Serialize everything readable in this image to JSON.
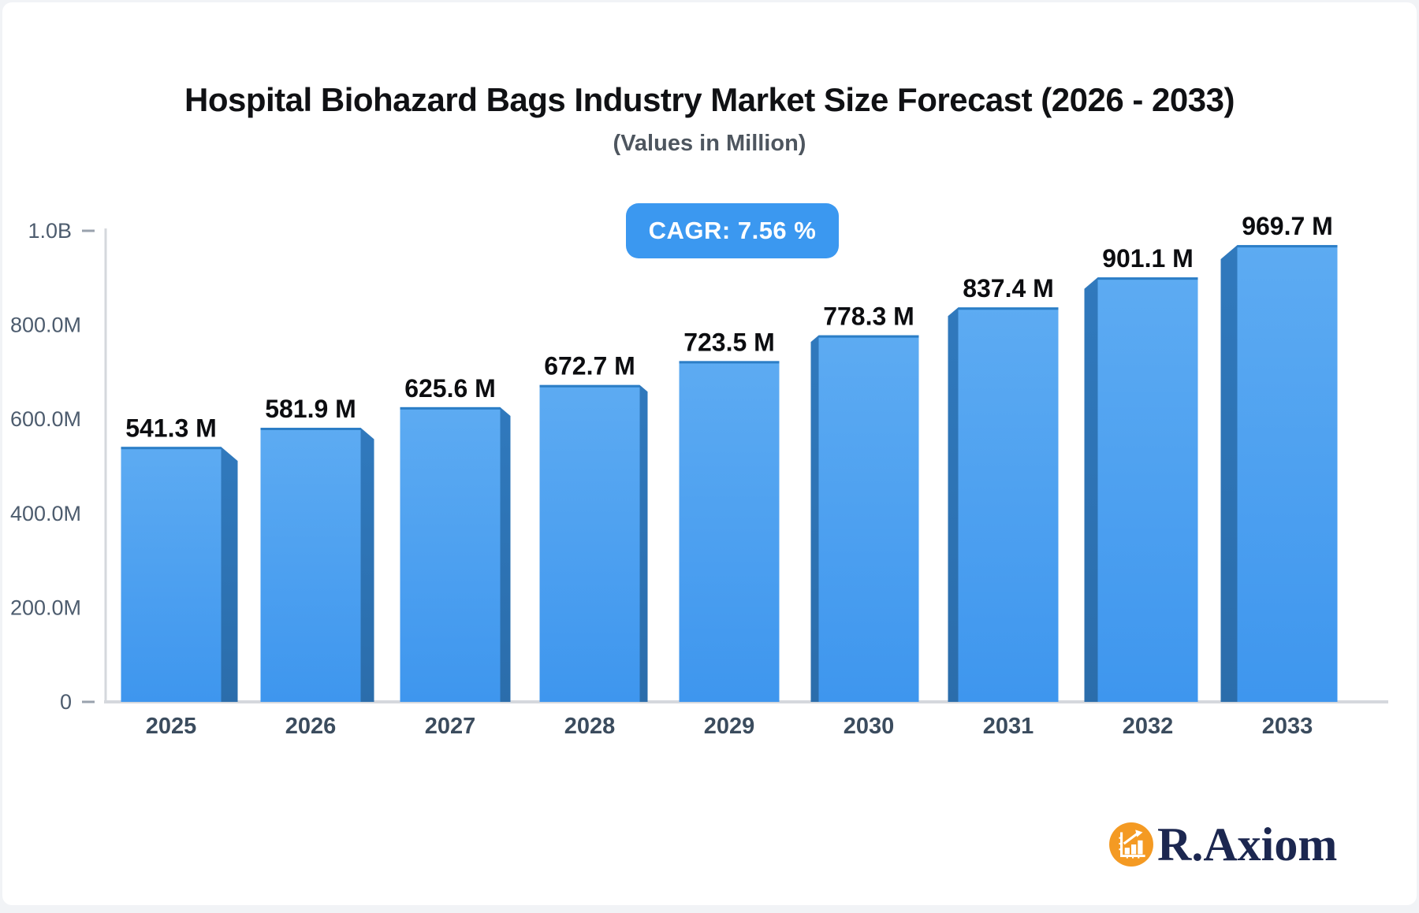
{
  "header": {
    "title": "Hospital Biohazard Bags Industry Market Size Forecast (2026 - 2033)",
    "subtitle": "(Values in Million)"
  },
  "badge": {
    "label": "CAGR: 7.56 %"
  },
  "footer": {
    "logo_text": "R.Axiom",
    "logo_icon": "bar-chart-growth-icon"
  },
  "chart_data": {
    "type": "bar",
    "title": "Hospital Biohazard Bags Industry Market Size Forecast (2026 - 2033)",
    "subtitle": "(Values in Million)",
    "cagr_percent": 7.56,
    "categories": [
      "2025",
      "2026",
      "2027",
      "2028",
      "2029",
      "2030",
      "2031",
      "2032",
      "2033"
    ],
    "values": [
      541.3,
      581.9,
      625.6,
      672.7,
      723.5,
      778.3,
      837.4,
      901.1,
      969.7
    ],
    "value_labels": [
      "541.3 M",
      "581.9 M",
      "625.6 M",
      "672.7 M",
      "723.5 M",
      "778.3 M",
      "837.4 M",
      "901.1 M",
      "969.7 M"
    ],
    "xlabel": "",
    "ylabel": "",
    "ylim": [
      0,
      1000
    ],
    "grid": false,
    "legend": false,
    "y_ticks": [
      {
        "label": "0",
        "value": 0,
        "tick_dash": true
      },
      {
        "label": "200.0M",
        "value": 200,
        "tick_dash": false
      },
      {
        "label": "400.0M",
        "value": 400,
        "tick_dash": false
      },
      {
        "label": "600.0M",
        "value": 600,
        "tick_dash": false
      },
      {
        "label": "800.0M",
        "value": 800,
        "tick_dash": false
      },
      {
        "label": "1.0B",
        "value": 1000,
        "tick_dash": true
      }
    ],
    "colors": {
      "bar_face_top": "#5dabf2",
      "bar_face_bottom": "#3e96ee",
      "bar_side_top": "#3079bd",
      "bar_side_bottom": "#2b6dab",
      "bar_top_edge": "#2c7ec6",
      "axis_line": "#d5d8dd",
      "tick_dash": "#99a2ad",
      "tick_label": "#4d5c6e",
      "category_label": "#3b4c5e",
      "value_label": "#0c0d10",
      "badge_bg": "#3b98f0",
      "badge_text": "#ffffff",
      "logo_orange": "#f49a23",
      "logo_navy": "#1c2750",
      "background": "#ffffff"
    }
  }
}
